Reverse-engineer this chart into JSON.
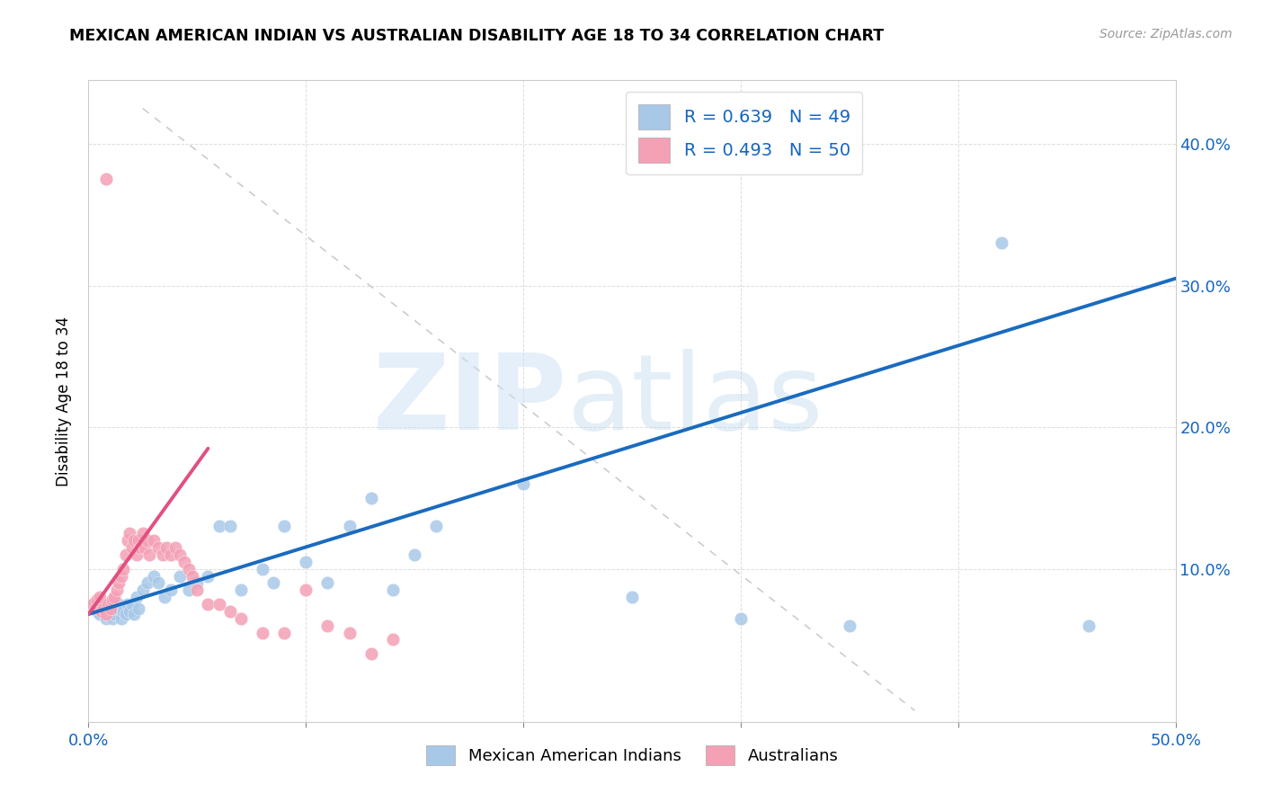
{
  "title": "MEXICAN AMERICAN INDIAN VS AUSTRALIAN DISABILITY AGE 18 TO 34 CORRELATION CHART",
  "source": "Source: ZipAtlas.com",
  "ylabel": "Disability Age 18 to 34",
  "xlim": [
    0.0,
    0.5
  ],
  "ylim": [
    -0.008,
    0.445
  ],
  "blue_R": 0.639,
  "blue_N": 49,
  "pink_R": 0.493,
  "pink_N": 50,
  "blue_color": "#a8c8e8",
  "pink_color": "#f4a0b5",
  "blue_line_color": "#1a6bbf",
  "pink_line_color": "#e05080",
  "legend_label_blue": "Mexican American Indians",
  "legend_label_pink": "Australians",
  "blue_x": [
    0.002,
    0.004,
    0.005,
    0.006,
    0.008,
    0.009,
    0.01,
    0.011,
    0.012,
    0.013,
    0.014,
    0.015,
    0.016,
    0.017,
    0.018,
    0.019,
    0.02,
    0.021,
    0.022,
    0.023,
    0.025,
    0.027,
    0.03,
    0.032,
    0.035,
    0.038,
    0.042,
    0.046,
    0.05,
    0.055,
    0.06,
    0.065,
    0.07,
    0.08,
    0.085,
    0.09,
    0.1,
    0.11,
    0.12,
    0.13,
    0.14,
    0.15,
    0.16,
    0.2,
    0.25,
    0.3,
    0.35,
    0.42,
    0.46
  ],
  "blue_y": [
    0.075,
    0.07,
    0.068,
    0.072,
    0.065,
    0.068,
    0.07,
    0.065,
    0.068,
    0.072,
    0.075,
    0.065,
    0.07,
    0.068,
    0.075,
    0.07,
    0.075,
    0.068,
    0.08,
    0.072,
    0.085,
    0.09,
    0.095,
    0.09,
    0.08,
    0.085,
    0.095,
    0.085,
    0.09,
    0.095,
    0.13,
    0.13,
    0.085,
    0.1,
    0.09,
    0.13,
    0.105,
    0.09,
    0.13,
    0.15,
    0.085,
    0.11,
    0.13,
    0.16,
    0.08,
    0.065,
    0.06,
    0.33,
    0.06
  ],
  "pink_x": [
    0.002,
    0.003,
    0.004,
    0.005,
    0.006,
    0.007,
    0.008,
    0.009,
    0.01,
    0.011,
    0.012,
    0.013,
    0.014,
    0.015,
    0.016,
    0.017,
    0.018,
    0.019,
    0.02,
    0.021,
    0.022,
    0.023,
    0.024,
    0.025,
    0.026,
    0.027,
    0.028,
    0.03,
    0.032,
    0.034,
    0.036,
    0.038,
    0.04,
    0.042,
    0.044,
    0.046,
    0.048,
    0.05,
    0.055,
    0.06,
    0.065,
    0.07,
    0.08,
    0.09,
    0.1,
    0.11,
    0.12,
    0.13,
    0.008,
    0.14
  ],
  "pink_y": [
    0.075,
    0.072,
    0.078,
    0.08,
    0.07,
    0.072,
    0.068,
    0.075,
    0.072,
    0.078,
    0.08,
    0.085,
    0.09,
    0.095,
    0.1,
    0.11,
    0.12,
    0.125,
    0.115,
    0.12,
    0.11,
    0.12,
    0.115,
    0.125,
    0.115,
    0.12,
    0.11,
    0.12,
    0.115,
    0.11,
    0.115,
    0.11,
    0.115,
    0.11,
    0.105,
    0.1,
    0.095,
    0.085,
    0.075,
    0.075,
    0.07,
    0.065,
    0.055,
    0.055,
    0.085,
    0.06,
    0.055,
    0.04,
    0.375,
    0.05
  ],
  "blue_line_x": [
    0.0,
    0.5
  ],
  "blue_line_y": [
    0.068,
    0.305
  ],
  "pink_line_x": [
    0.0,
    0.055
  ],
  "pink_line_y": [
    0.068,
    0.185
  ],
  "diag_line_x": [
    0.025,
    0.38
  ],
  "diag_line_y": [
    0.425,
    0.0
  ]
}
